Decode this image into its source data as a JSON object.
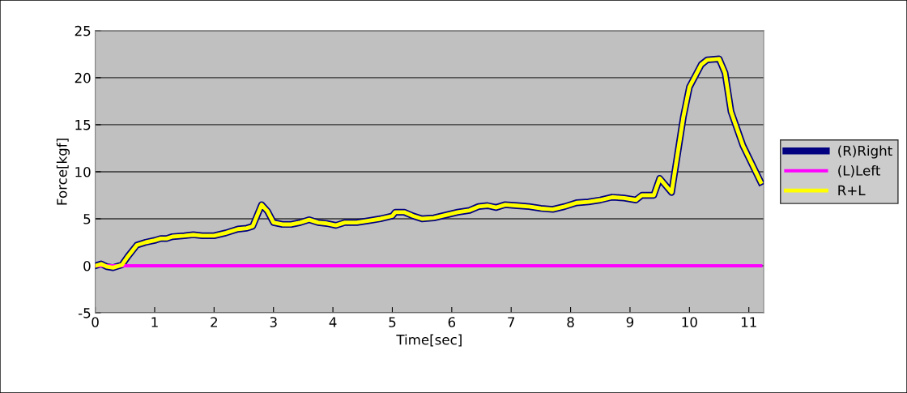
{
  "chart_data": {
    "type": "line",
    "xlabel": "Time[sec]",
    "ylabel": "Force[kgf]",
    "x": [
      0,
      0.1,
      0.2,
      0.3,
      0.45,
      0.55,
      0.7,
      0.85,
      1.0,
      1.1,
      1.2,
      1.3,
      1.5,
      1.65,
      1.8,
      2.0,
      2.2,
      2.4,
      2.55,
      2.65,
      2.8,
      2.9,
      3.0,
      3.15,
      3.3,
      3.45,
      3.6,
      3.75,
      3.9,
      4.05,
      4.2,
      4.4,
      4.6,
      4.8,
      5.0,
      5.05,
      5.2,
      5.35,
      5.5,
      5.7,
      5.9,
      6.1,
      6.3,
      6.45,
      6.6,
      6.75,
      6.9,
      7.1,
      7.3,
      7.5,
      7.7,
      7.9,
      8.1,
      8.3,
      8.5,
      8.7,
      8.9,
      9.1,
      9.2,
      9.4,
      9.5,
      9.7,
      9.9,
      10.0,
      10.2,
      10.3,
      10.5,
      10.6,
      10.7,
      10.9,
      11.2
    ],
    "series": [
      {
        "name": "(R)Right",
        "color": "#000080",
        "values": [
          0.0,
          0.2,
          -0.1,
          -0.2,
          0.1,
          1.0,
          2.2,
          2.5,
          2.7,
          2.9,
          2.9,
          3.1,
          3.2,
          3.3,
          3.2,
          3.2,
          3.5,
          3.9,
          4.0,
          4.2,
          6.5,
          5.8,
          4.6,
          4.4,
          4.4,
          4.6,
          4.9,
          4.6,
          4.5,
          4.3,
          4.6,
          4.6,
          4.8,
          5.0,
          5.3,
          5.7,
          5.7,
          5.3,
          5.0,
          5.1,
          5.4,
          5.7,
          5.9,
          6.3,
          6.4,
          6.2,
          6.5,
          6.4,
          6.3,
          6.1,
          6.0,
          6.3,
          6.7,
          6.8,
          7.0,
          7.3,
          7.2,
          7.0,
          7.5,
          7.5,
          9.3,
          7.8,
          15.9,
          19.0,
          21.4,
          21.9,
          22.0,
          20.5,
          16.4,
          12.8,
          8.9
        ]
      },
      {
        "name": "(L)Left",
        "color": "#ff00ff",
        "values": [
          0,
          0,
          0,
          0,
          0,
          0,
          0,
          0,
          0,
          0,
          0,
          0,
          0,
          0,
          0,
          0,
          0,
          0,
          0,
          0,
          0,
          0,
          0,
          0,
          0,
          0,
          0,
          0,
          0,
          0,
          0,
          0,
          0,
          0,
          0,
          0,
          0,
          0,
          0,
          0,
          0,
          0,
          0,
          0,
          0,
          0,
          0,
          0,
          0,
          0,
          0,
          0,
          0,
          0,
          0,
          0,
          0,
          0,
          0,
          0,
          0,
          0,
          0,
          0,
          0,
          0,
          0,
          0,
          0,
          0,
          0
        ]
      },
      {
        "name": "R+L",
        "color": "#ffff00",
        "values": [
          0.0,
          0.2,
          -0.1,
          -0.2,
          0.1,
          1.0,
          2.2,
          2.5,
          2.7,
          2.9,
          2.9,
          3.1,
          3.2,
          3.3,
          3.2,
          3.2,
          3.5,
          3.9,
          4.0,
          4.2,
          6.5,
          5.8,
          4.6,
          4.4,
          4.4,
          4.6,
          4.9,
          4.6,
          4.5,
          4.3,
          4.6,
          4.6,
          4.8,
          5.0,
          5.3,
          5.7,
          5.7,
          5.3,
          5.0,
          5.1,
          5.4,
          5.7,
          5.9,
          6.3,
          6.4,
          6.2,
          6.5,
          6.4,
          6.3,
          6.1,
          6.0,
          6.3,
          6.7,
          6.8,
          7.0,
          7.3,
          7.2,
          7.0,
          7.5,
          7.5,
          9.3,
          7.8,
          15.9,
          19.0,
          21.4,
          21.9,
          22.0,
          20.5,
          16.4,
          12.8,
          8.9
        ]
      }
    ],
    "xlim": [
      0,
      11.25
    ],
    "xticks": [
      0,
      1,
      2,
      3,
      4,
      5,
      6,
      7,
      8,
      9,
      10,
      11
    ],
    "ylim": [
      -5,
      25
    ],
    "yticks": [
      -5,
      0,
      5,
      10,
      15,
      20,
      25
    ],
    "grid": "y",
    "legend": "right",
    "marker": "none",
    "line_style": "solid"
  }
}
